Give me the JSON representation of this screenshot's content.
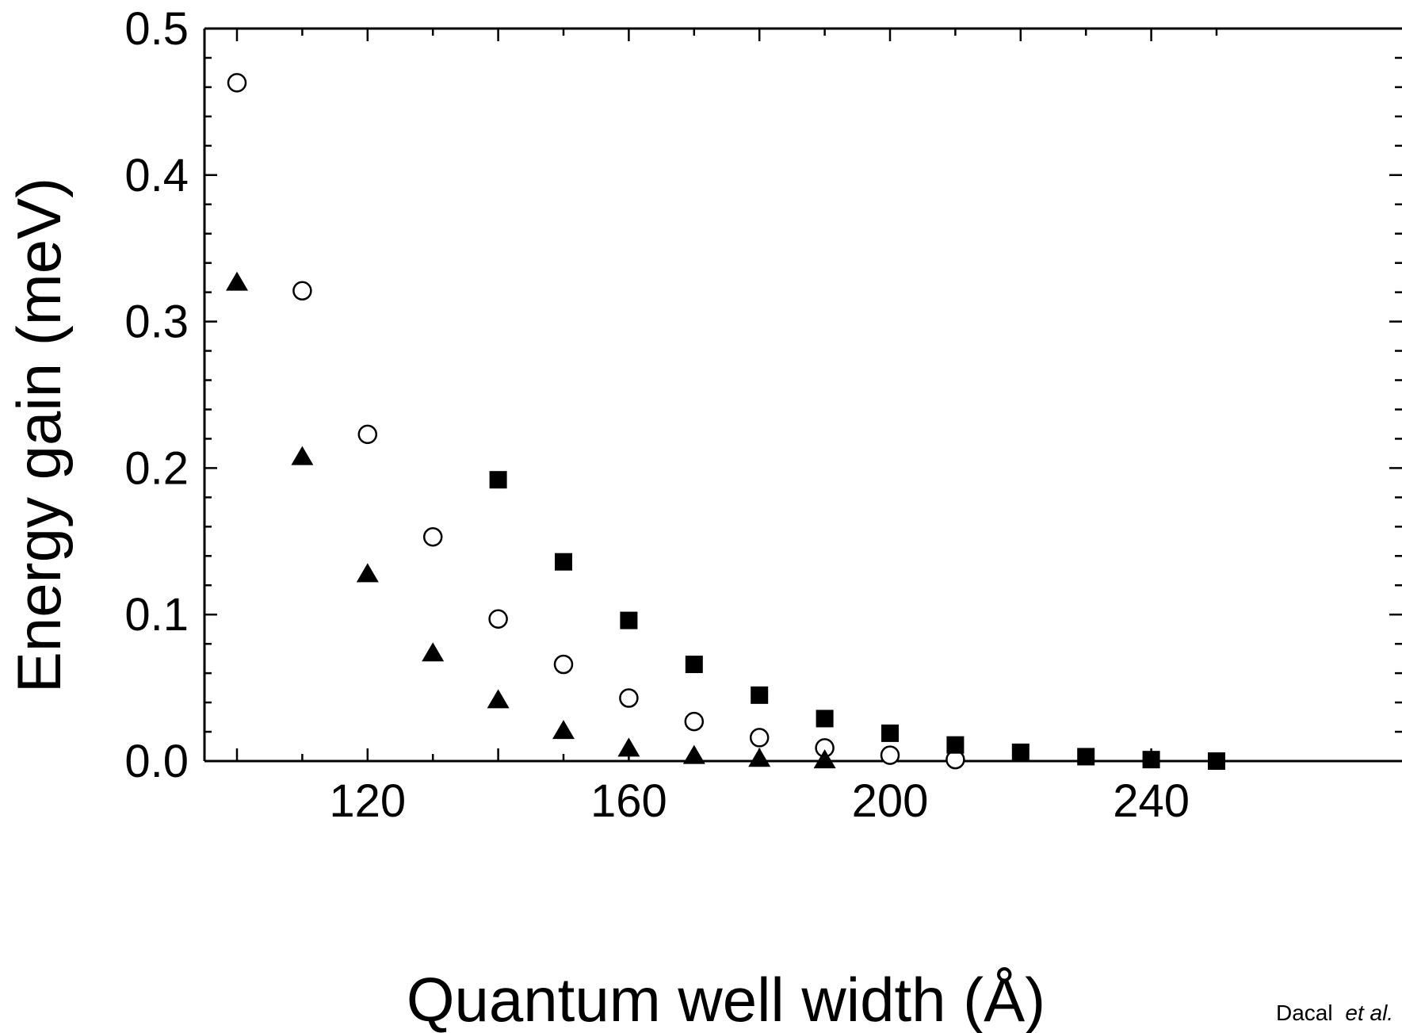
{
  "chart_data": {
    "type": "scatter",
    "title": "",
    "xlabel": "Quantum well width (Å)",
    "ylabel": "Energy gain (meV)",
    "xlim": [
      95,
      250
    ],
    "ylim": [
      0,
      0.5
    ],
    "x_ticks": [
      120,
      160,
      200,
      240
    ],
    "x_tick_labels": [
      "120",
      "160",
      "200",
      "240"
    ],
    "y_ticks": [
      0.0,
      0.1,
      0.2,
      0.3,
      0.4,
      0.5
    ],
    "y_tick_labels": [
      "0.0",
      "0.1",
      "0.2",
      "0.3",
      "0.4",
      "0.5"
    ],
    "grid": false,
    "legend": "none",
    "credit": {
      "author": "Dacal",
      "suffix": "et al."
    },
    "series": [
      {
        "marker": "open-circle",
        "color": "#000000",
        "x": [
          100,
          110,
          120,
          130,
          140,
          150,
          160,
          170,
          180,
          190,
          200,
          210
        ],
        "y": [
          0.463,
          0.321,
          0.223,
          0.153,
          0.097,
          0.066,
          0.043,
          0.027,
          0.016,
          0.009,
          0.004,
          0.001
        ]
      },
      {
        "marker": "filled-triangle",
        "color": "#000000",
        "x": [
          100,
          110,
          120,
          130,
          140,
          150,
          160,
          170,
          180,
          190
        ],
        "y": [
          0.326,
          0.207,
          0.127,
          0.073,
          0.041,
          0.02,
          0.008,
          0.003,
          0.001,
          0.0
        ]
      },
      {
        "marker": "filled-square",
        "color": "#000000",
        "x": [
          140,
          150,
          160,
          170,
          180,
          190,
          200,
          210,
          220,
          230,
          240,
          250
        ],
        "y": [
          0.192,
          0.136,
          0.096,
          0.066,
          0.045,
          0.029,
          0.019,
          0.011,
          0.006,
          0.003,
          0.001,
          0.0
        ]
      }
    ]
  }
}
